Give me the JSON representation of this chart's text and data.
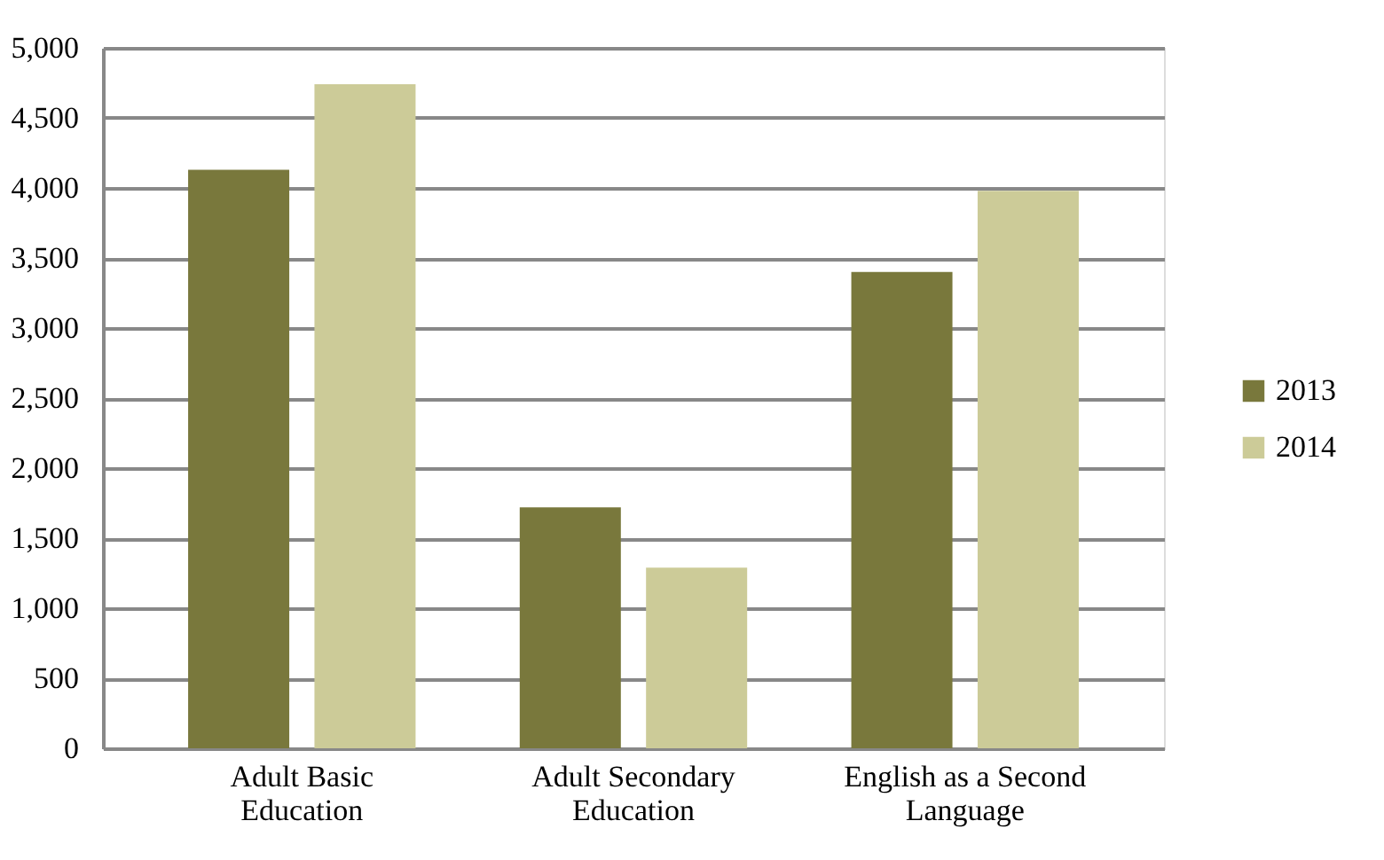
{
  "chart_data": {
    "type": "bar",
    "categories": [
      "Adult Basic Education",
      "Adult Secondary Education",
      "English as a Second Language"
    ],
    "series": [
      {
        "name": "2013",
        "color": "#79783c",
        "values": [
          4130,
          1720,
          3400
        ]
      },
      {
        "name": "2014",
        "color": "#cccb98",
        "values": [
          4740,
          1290,
          3980
        ]
      }
    ],
    "ylim": [
      0,
      5000
    ],
    "yticks": [
      0,
      500,
      {
        "value": 1000,
        "label": "1,000"
      },
      {
        "value": 1500,
        "label": "1,500"
      },
      {
        "value": 2000,
        "label": "2,000"
      },
      {
        "value": 2500,
        "label": "2,500"
      },
      {
        "value": 3000,
        "label": "3,000"
      },
      {
        "value": 3500,
        "label": "3,500"
      },
      {
        "value": 4000,
        "label": "4,000"
      },
      {
        "value": 4500,
        "label": "4,500"
      },
      {
        "value": 5000,
        "label": "5,000"
      }
    ],
    "grid": "y",
    "legend": "right"
  }
}
